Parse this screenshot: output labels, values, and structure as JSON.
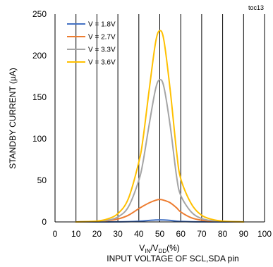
{
  "chart_data": {
    "type": "line",
    "tag": "toc13",
    "ylabel": "STANDBY CURRENT (µA)",
    "xlabel": {
      "prefix": "V",
      "sub1": "IN",
      "mid": "/V",
      "sub2": "DD",
      "suffix": "(%)",
      "line2": "INPUT VOLTAGE OF SCL,SDA pin"
    },
    "xlim": [
      0,
      100
    ],
    "ylim": [
      0,
      250
    ],
    "xticks": [
      0,
      10,
      20,
      30,
      40,
      50,
      60,
      70,
      80,
      90,
      100
    ],
    "yticks": [
      0,
      50,
      100,
      150,
      200,
      250
    ],
    "grid": "vertical",
    "legend_position": "top-left",
    "x": [
      10,
      20,
      25,
      30,
      35,
      40,
      42,
      45,
      48,
      50,
      52,
      55,
      58,
      60,
      65,
      70,
      75,
      80,
      90
    ],
    "series": [
      {
        "name": "V = 1.8V",
        "color": "#4472c4",
        "values": [
          0,
          0,
          0,
          0.1,
          0.3,
          0.8,
          1.2,
          1.8,
          2.3,
          2.4,
          2.3,
          1.8,
          1.0,
          0.6,
          0.2,
          0.1,
          0,
          0,
          0
        ]
      },
      {
        "name": "V = 2.7V",
        "color": "#ed7d31",
        "values": [
          0,
          0.5,
          1.5,
          3.5,
          8,
          16,
          19,
          23,
          26,
          27,
          26,
          23,
          17,
          12,
          5,
          2,
          1,
          0.5,
          0
        ]
      },
      {
        "name": "V = 3.3V",
        "color": "#a5a5a5",
        "values": [
          0,
          0.5,
          2,
          6,
          18,
          50,
          72,
          118,
          160,
          171,
          162,
          115,
          55,
          32,
          12,
          4,
          1.5,
          0.5,
          0
        ]
      },
      {
        "name": "V = 3.6V",
        "color": "#ffc000",
        "values": [
          0,
          1,
          3.5,
          10,
          28,
          72,
          100,
          160,
          216,
          230,
          218,
          158,
          85,
          52,
          22,
          8,
          3,
          1,
          0
        ]
      }
    ]
  }
}
